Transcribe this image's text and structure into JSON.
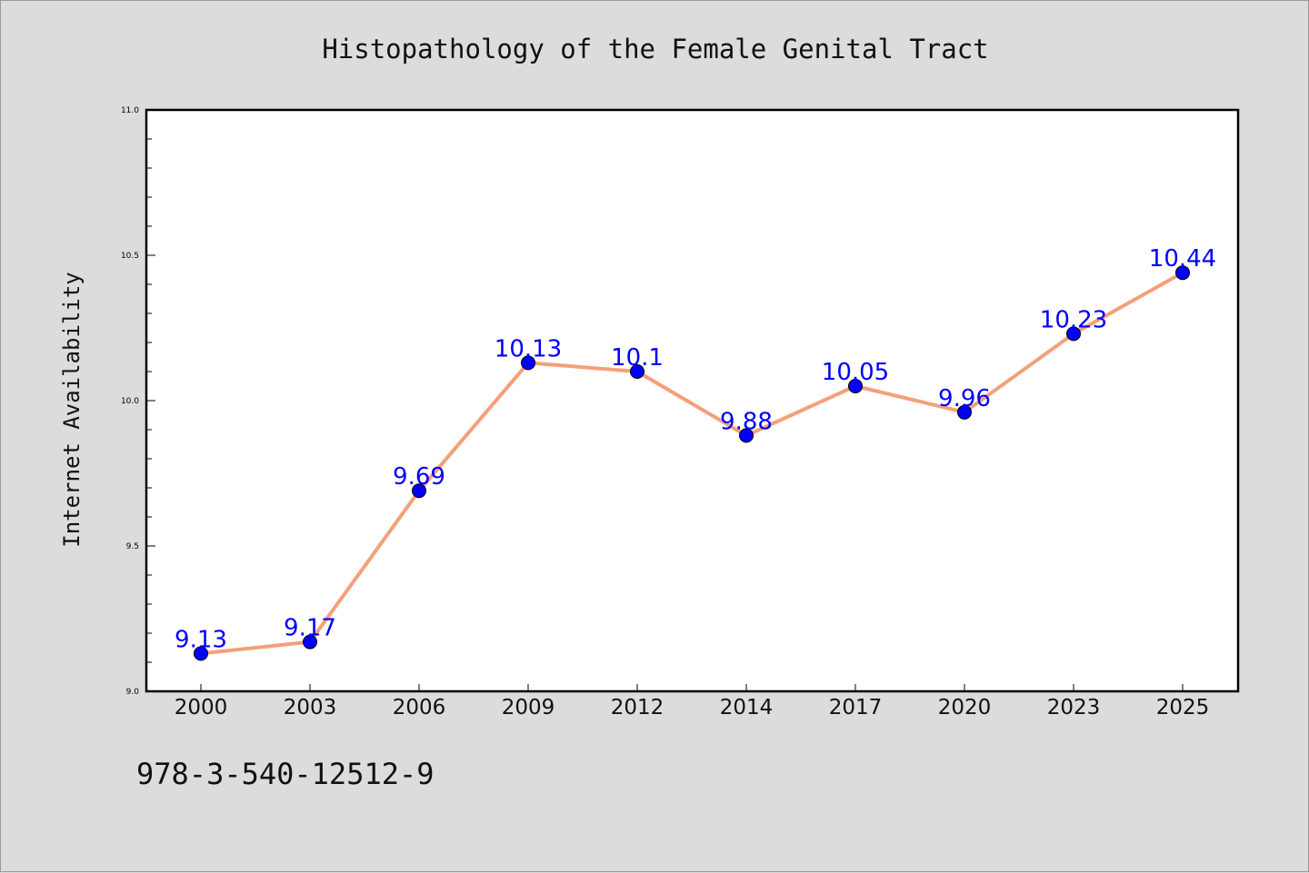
{
  "chart_data": {
    "type": "line",
    "title": "Histopathology of the Female Genital Tract",
    "xlabel": "",
    "ylabel": "Internet Availability",
    "categories": [
      "2000",
      "2003",
      "2006",
      "2009",
      "2012",
      "2014",
      "2017",
      "2020",
      "2023",
      "2025"
    ],
    "series": [
      {
        "values": [
          9.13,
          9.17,
          9.69,
          10.13,
          10.1,
          9.88,
          10.05,
          9.96,
          10.23,
          10.44
        ],
        "data_labels": [
          "9.13",
          "9.17",
          "9.69",
          "10.13",
          "10.1",
          "9.88",
          "10.05",
          "9.96",
          "10.23",
          "10.44"
        ]
      }
    ],
    "ylim": [
      9.0,
      11.0
    ],
    "yticks": [
      "9.0",
      "9.5",
      "10.0",
      "10.5",
      "11.0"
    ],
    "grid": false,
    "legend": "none",
    "colors": {
      "line": "#f4a07a",
      "marker": "#0000ff",
      "data_label": "#0000ff",
      "plot_background": "#ffffff",
      "figure_background": "#dcdcdc"
    }
  },
  "footer_text": "978-3-540-12512-9"
}
